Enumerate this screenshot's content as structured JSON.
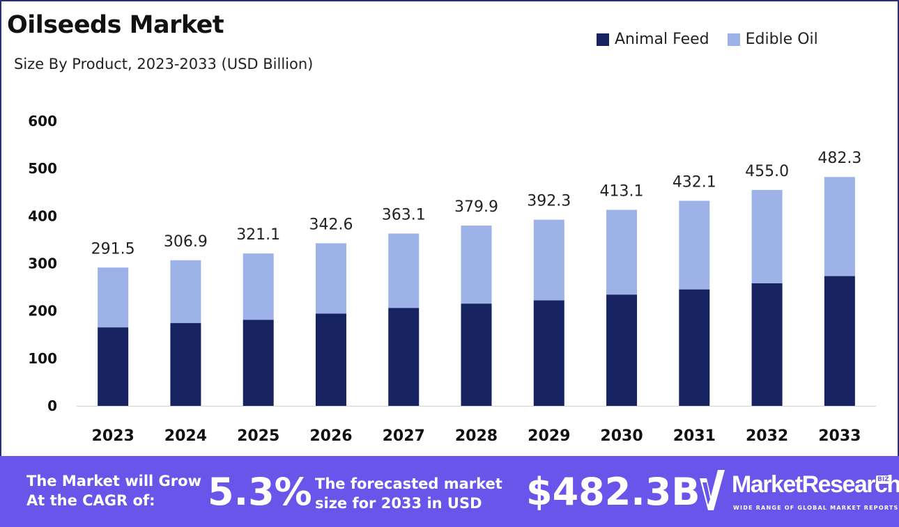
{
  "header": {
    "title": "Oilseeds Market",
    "subtitle": "Size By Product, 2023-2033 (USD Billion)"
  },
  "legend": [
    {
      "label": "Animal Feed",
      "color": "#172261"
    },
    {
      "label": "Edible Oil",
      "color": "#9db2e6"
    }
  ],
  "chart_data": {
    "type": "bar",
    "stacked": true,
    "categories": [
      "2023",
      "2024",
      "2025",
      "2026",
      "2027",
      "2028",
      "2029",
      "2030",
      "2031",
      "2032",
      "2033"
    ],
    "series": [
      {
        "name": "Animal Feed",
        "color": "#172261",
        "values": [
          165.5,
          174.5,
          181.5,
          194.5,
          206.5,
          215.5,
          222.5,
          234.5,
          245.5,
          258.5,
          273.5
        ]
      },
      {
        "name": "Edible Oil",
        "color": "#9db2e6",
        "values": [
          126.0,
          132.4,
          139.6,
          148.1,
          156.6,
          164.4,
          169.8,
          178.6,
          186.6,
          196.5,
          208.8
        ]
      }
    ],
    "totals": [
      "291.5",
      "306.9",
      "321.1",
      "342.6",
      "363.1",
      "379.9",
      "392.3",
      "413.1",
      "432.1",
      "455.0",
      "482.3"
    ],
    "yticks": [
      "0",
      "100",
      "200",
      "300",
      "400",
      "500",
      "600"
    ],
    "ylim": [
      0,
      600
    ],
    "grid": false,
    "legend_position": "top-right"
  },
  "footer": {
    "cagr_label": "The Market will Grow At the CAGR of:",
    "cagr_value": "5.3%",
    "forecast_label": "The forecasted market size for 2033 in USD",
    "forecast_value": "$482.3B",
    "brand_name": "MarketResearch",
    "brand_badge": "BIZ",
    "brand_tagline": "WIDE RANGE OF GLOBAL MARKET REPORTS"
  }
}
